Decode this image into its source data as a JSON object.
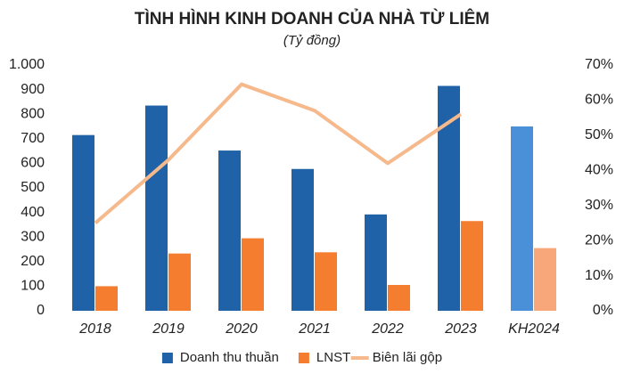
{
  "chart_data": {
    "type": "bar-line",
    "title": "TÌNH HÌNH KINH DOANH CỦA NHÀ TỪ LIÊM",
    "subtitle": "(Tỷ đồng)",
    "categories": [
      "2018",
      "2019",
      "2020",
      "2021",
      "2022",
      "2023",
      "KH2024"
    ],
    "series": [
      {
        "name": "Doanh thu thuần",
        "type": "bar",
        "color": "#1f62a7",
        "colors": [
          "#1f62a7",
          "#1f62a7",
          "#1f62a7",
          "#1f62a7",
          "#1f62a7",
          "#1f62a7",
          "#4a90d9"
        ],
        "values": [
          715,
          835,
          652,
          577,
          392,
          915,
          750
        ]
      },
      {
        "name": "LNST",
        "type": "bar",
        "color": "#f47d30",
        "colors": [
          "#f47d30",
          "#f47d30",
          "#f47d30",
          "#f47d30",
          "#f47d30",
          "#f47d30",
          "#f8a77b"
        ],
        "values": [
          100,
          233,
          295,
          238,
          105,
          365,
          255
        ]
      },
      {
        "name": "Biên lãi gộp",
        "type": "line",
        "axis": "y2",
        "color": "#f5b98c",
        "values": [
          25,
          43,
          64.5,
          57,
          42,
          56,
          null
        ]
      }
    ],
    "ylim": [
      0,
      1000
    ],
    "yticks": [
      0,
      100,
      200,
      300,
      400,
      500,
      600,
      700,
      800,
      900,
      {
        "value": 1000,
        "label": "1.000"
      }
    ],
    "y2lim": [
      0,
      70
    ],
    "y2ticks": [
      {
        "value": 0,
        "label": "0%"
      },
      {
        "value": 10,
        "label": "10%"
      },
      {
        "value": 20,
        "label": "20%"
      },
      {
        "value": 30,
        "label": "30%"
      },
      {
        "value": 40,
        "label": "40%"
      },
      {
        "value": 50,
        "label": "50%"
      },
      {
        "value": 60,
        "label": "60%"
      },
      {
        "value": 70,
        "label": "70%"
      }
    ],
    "grid": false,
    "legend": "bottom"
  }
}
